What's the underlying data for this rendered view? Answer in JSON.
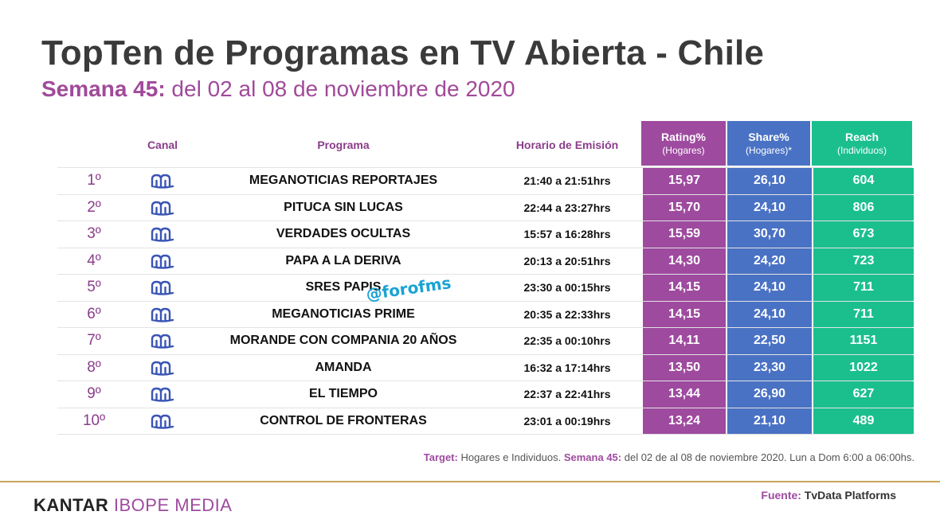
{
  "title": "TopTen de Programas en TV Abierta - Chile",
  "subtitle": {
    "week_label": "Semana 45:",
    "date_range": "del 02 al 08 de noviembre de 2020"
  },
  "headers": {
    "canal": "Canal",
    "programa": "Programa",
    "horario": "Horario de Emisión",
    "rating": "Rating%",
    "rating_sub": "(Hogares)",
    "share": "Share%",
    "share_sub": "(Hogares)*",
    "reach": "Reach",
    "reach_sub": "(Individuos)"
  },
  "colors": {
    "rating": "#9e4a9f",
    "share": "#4a72c4",
    "reach": "#1bbf8e",
    "accent": "#a04a9a"
  },
  "channel_icon": "mega-logo-icon",
  "rows": [
    {
      "rank": "1º",
      "programa": "MEGANOTICIAS REPORTAJES",
      "horario": "21:40 a 21:51hrs",
      "rating": "15,97",
      "share": "26,10",
      "reach": "604"
    },
    {
      "rank": "2º",
      "programa": "PITUCA SIN LUCAS",
      "horario": "22:44 a 23:27hrs",
      "rating": "15,70",
      "share": "24,10",
      "reach": "806"
    },
    {
      "rank": "3º",
      "programa": "VERDADES OCULTAS",
      "horario": "15:57 a 16:28hrs",
      "rating": "15,59",
      "share": "30,70",
      "reach": "673"
    },
    {
      "rank": "4º",
      "programa": "PAPA A LA DERIVA",
      "horario": "20:13 a 20:51hrs",
      "rating": "14,30",
      "share": "24,20",
      "reach": "723"
    },
    {
      "rank": "5º",
      "programa": "SRES PAPIS",
      "horario": "23:30 a 00:15hrs",
      "rating": "14,15",
      "share": "24,10",
      "reach": "711"
    },
    {
      "rank": "6º",
      "programa": "MEGANOTICIAS PRIME",
      "horario": "20:35 a 22:33hrs",
      "rating": "14,15",
      "share": "24,10",
      "reach": "711"
    },
    {
      "rank": "7º",
      "programa": "MORANDE CON COMPANIA 20 AÑOS",
      "horario": "22:35 a 00:10hrs",
      "rating": "14,11",
      "share": "22,50",
      "reach": "1151"
    },
    {
      "rank": "8º",
      "programa": "AMANDA",
      "horario": "16:32 a 17:14hrs",
      "rating": "13,50",
      "share": "23,30",
      "reach": "1022"
    },
    {
      "rank": "9º",
      "programa": "EL TIEMPO",
      "horario": "22:37 a 22:41hrs",
      "rating": "13,44",
      "share": "26,90",
      "reach": "627"
    },
    {
      "rank": "10º",
      "programa": "CONTROL DE FRONTERAS",
      "horario": "23:01 a 00:19hrs",
      "rating": "13,24",
      "share": "21,10",
      "reach": "489"
    }
  ],
  "watermark": "@forofms",
  "footnote": {
    "target_label": "Target:",
    "target_text": "Hogares e Individuos.",
    "week_label": "Semana 45:",
    "week_text": "del 02 de al 08 de noviembre 2020. Lun a Dom 6:00 a 06:00hs."
  },
  "brand": {
    "part1": "KANTAR",
    "part2": "IBOPE",
    "part3": "MEDIA"
  },
  "source": {
    "label": "Fuente:",
    "text": "TvData Platforms"
  }
}
